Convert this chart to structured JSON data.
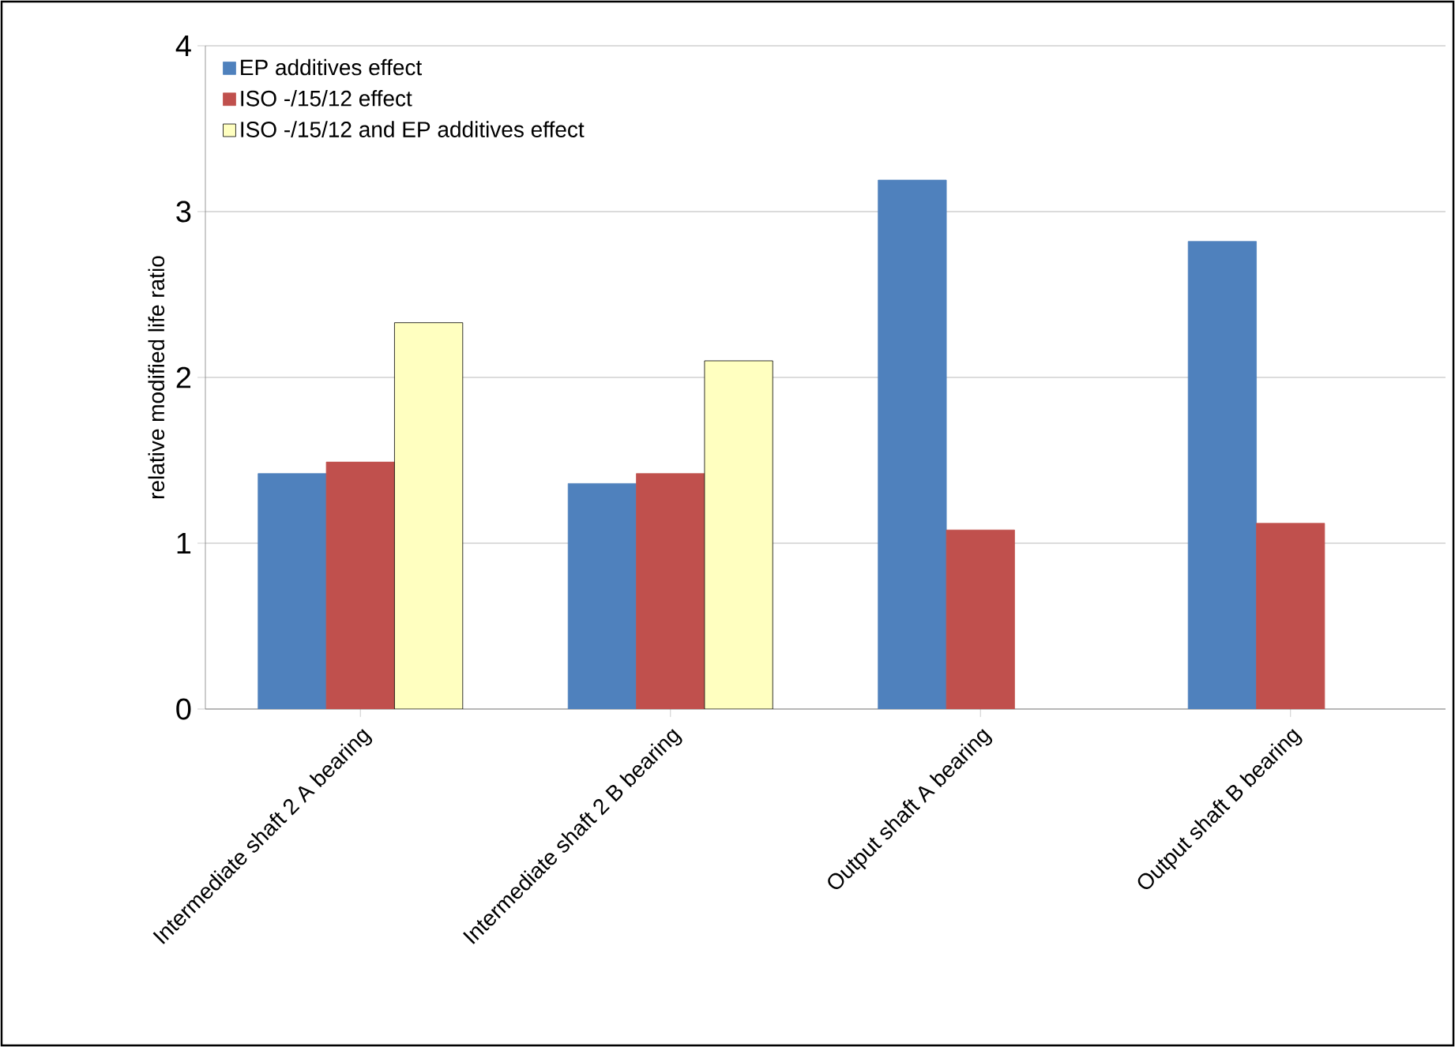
{
  "chart_data": {
    "type": "bar",
    "ylabel": "relative modified life ratio",
    "categories": [
      "Intermediate shaft 2 A bearing",
      "Intermediate shaft 2 B bearing",
      "Output shaft A bearing",
      "Output shaft B bearing"
    ],
    "series": [
      {
        "name": "EP additives effect",
        "color": "#4f81bd",
        "values": [
          1.42,
          1.36,
          3.19,
          2.82
        ]
      },
      {
        "name": "ISO -/15/12 effect",
        "color": "#c0504d",
        "values": [
          1.49,
          1.42,
          1.08,
          1.12
        ]
      },
      {
        "name": "ISO -/15/12 and EP additives effect",
        "color": "#ffffc0",
        "values": [
          2.33,
          2.1,
          null,
          null
        ]
      }
    ],
    "ylim": [
      0,
      4
    ],
    "yticks": [
      0,
      1,
      2,
      3,
      4
    ],
    "grid": "y",
    "legend": "top left"
  }
}
